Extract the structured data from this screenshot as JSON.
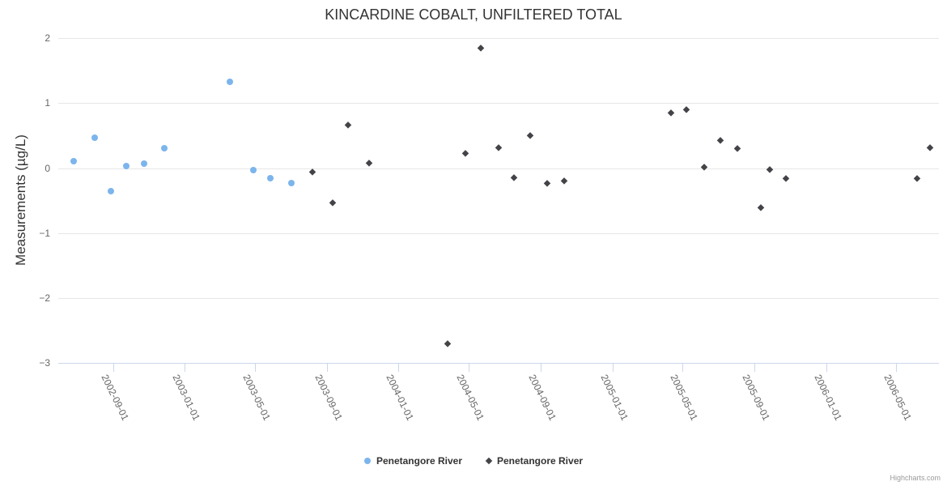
{
  "credit": "Highcharts.com",
  "chart_data": {
    "type": "scatter",
    "title": "KINCARDINE COBALT, UNFILTERED TOTAL",
    "xlabel": "",
    "ylabel": "Measurements (µg/L)",
    "ylim": [
      -3,
      2
    ],
    "yticks": [
      2,
      1,
      0,
      -1,
      -2,
      -3
    ],
    "xticks": [
      "2002-09-01",
      "2003-01-01",
      "2003-05-01",
      "2003-09-01",
      "2004-01-01",
      "2004-05-01",
      "2004-09-01",
      "2005-01-01",
      "2005-05-01",
      "2005-09-01",
      "2006-01-01",
      "2006-05-01"
    ],
    "grid": true,
    "legend_position": "bottom-center",
    "colors": {
      "series1": "#7cb5ec",
      "series2": "#434348",
      "grid": "#e6e6e6",
      "axis_line": "#ccd6eb",
      "tick_label": "#666666",
      "title_text": "#333333",
      "legend_text": "#333333",
      "credit_text": "#999999"
    },
    "series": [
      {
        "name": "Penetangore River",
        "marker": "circle",
        "color": "#7cb5ec",
        "points": [
          [
            "2002-06-25",
            0.1
          ],
          [
            "2002-07-31",
            0.47
          ],
          [
            "2002-08-28",
            -0.35
          ],
          [
            "2002-09-24",
            0.03
          ],
          [
            "2002-10-24",
            0.07
          ],
          [
            "2002-11-27",
            0.3
          ],
          [
            "2003-03-19",
            1.33
          ],
          [
            "2003-04-29",
            -0.03
          ],
          [
            "2003-05-27",
            -0.16
          ],
          [
            "2003-07-02",
            -0.23
          ]
        ]
      },
      {
        "name": "Penetangore River",
        "marker": "diamond",
        "color": "#434348",
        "points": [
          [
            "2003-08-07",
            -0.06
          ],
          [
            "2003-09-11",
            -0.53
          ],
          [
            "2003-10-08",
            0.67
          ],
          [
            "2003-11-13",
            0.08
          ],
          [
            "2004-03-25",
            -2.7
          ],
          [
            "2004-04-25",
            0.23
          ],
          [
            "2004-05-21",
            1.86
          ],
          [
            "2004-06-20",
            0.32
          ],
          [
            "2004-07-17",
            -0.14
          ],
          [
            "2004-08-14",
            0.5
          ],
          [
            "2004-09-12",
            -0.23
          ],
          [
            "2004-10-10",
            -0.19
          ],
          [
            "2005-04-11",
            0.86
          ],
          [
            "2005-05-08",
            0.91
          ],
          [
            "2005-06-07",
            0.02
          ],
          [
            "2005-07-04",
            0.43
          ],
          [
            "2005-08-02",
            0.3
          ],
          [
            "2005-09-12",
            -0.6
          ],
          [
            "2005-09-27",
            -0.02
          ],
          [
            "2005-10-24",
            -0.15
          ],
          [
            "2006-06-06",
            -0.16
          ],
          [
            "2006-06-27",
            0.32
          ]
        ]
      }
    ]
  }
}
